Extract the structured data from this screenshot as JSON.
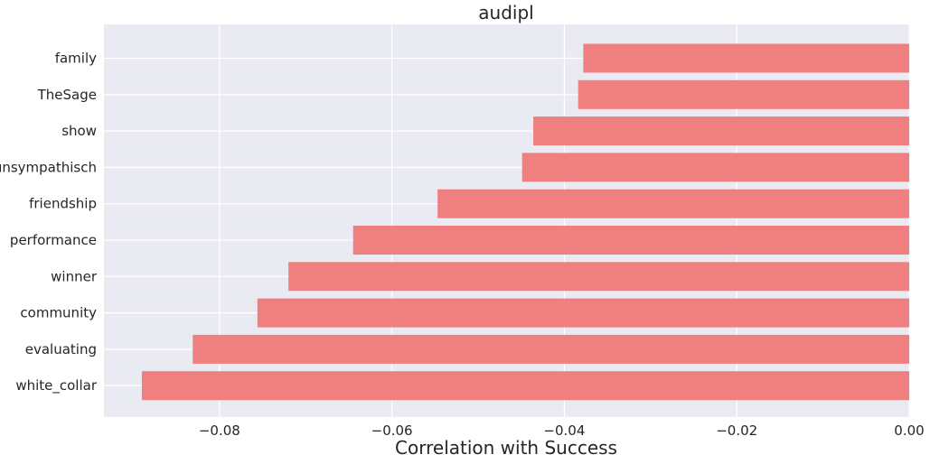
{
  "chart_data": {
    "type": "bar",
    "orientation": "horizontal",
    "title": "audipl",
    "xlabel": "Correlation with Success",
    "ylabel": "",
    "categories": [
      "family",
      "TheSage",
      "show",
      "unsympathisch",
      "friendship",
      "performance",
      "winner",
      "community",
      "evaluating",
      "white_collar"
    ],
    "values": [
      -0.0378,
      -0.0384,
      -0.0436,
      -0.0449,
      -0.0547,
      -0.0645,
      -0.072,
      -0.0756,
      -0.0831,
      -0.089
    ],
    "xlim": [
      -0.0934,
      0.0
    ],
    "xticks": [
      -0.08,
      -0.06,
      -0.04,
      -0.02,
      0.0
    ],
    "xtick_labels": [
      "−0.08",
      "−0.06",
      "−0.04",
      "−0.02",
      "0.00"
    ],
    "bar_color": "#f08080",
    "background_color": "#eaeaf2",
    "grid": true
  }
}
